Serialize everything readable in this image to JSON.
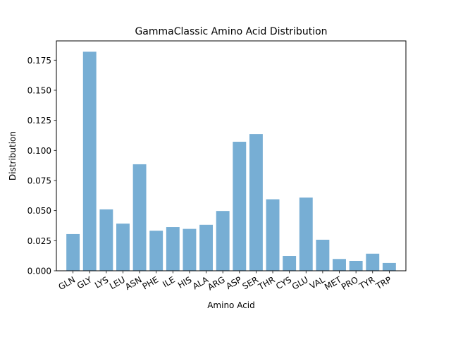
{
  "chart_data": {
    "type": "bar",
    "title": "GammaClassic Amino Acid Distribution",
    "xlabel": "Amino Acid",
    "ylabel": "Distribution",
    "categories": [
      "GLN",
      "GLY",
      "LYS",
      "LEU",
      "ASN",
      "PHE",
      "ILE",
      "HIS",
      "ALA",
      "ARG",
      "ASP",
      "SER",
      "THR",
      "CYS",
      "GLU",
      "VAL",
      "MET",
      "PRO",
      "TYR",
      "TRP"
    ],
    "values": [
      0.0305,
      0.182,
      0.051,
      0.0392,
      0.0885,
      0.0333,
      0.0363,
      0.0348,
      0.0382,
      0.0497,
      0.1072,
      0.1136,
      0.0594,
      0.0123,
      0.0608,
      0.0258,
      0.0098,
      0.0082,
      0.0142,
      0.0065
    ],
    "ylim": [
      0,
      0.191
    ],
    "yticks": [
      0.0,
      0.025,
      0.05,
      0.075,
      0.1,
      0.125,
      0.15,
      0.175
    ],
    "ytick_labels": [
      "0.000",
      "0.025",
      "0.050",
      "0.075",
      "0.100",
      "0.125",
      "0.150",
      "0.175"
    ],
    "bar_color": "#77aed4",
    "grid": false,
    "xtick_rotation": "30 degrees"
  }
}
